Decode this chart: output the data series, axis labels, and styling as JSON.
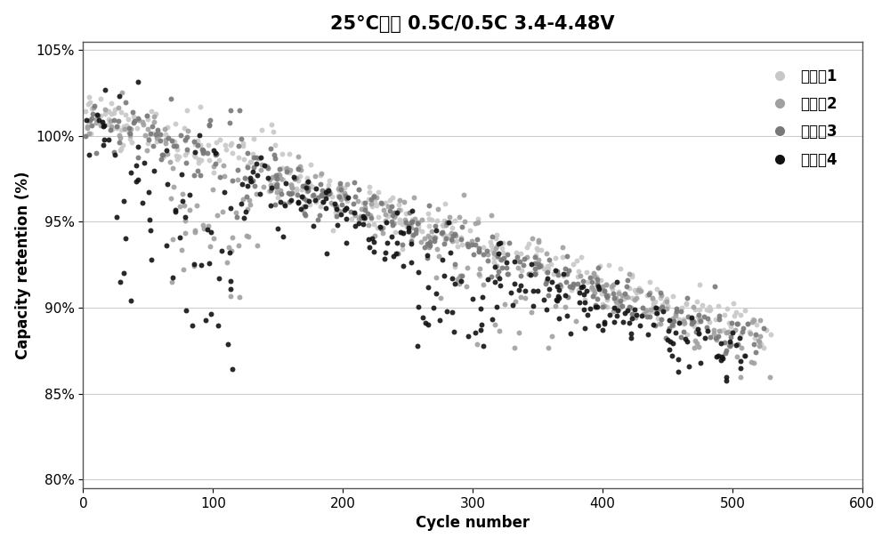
{
  "title": "25°C循环 0.5C/0.5C 3.4-4.48V",
  "xlabel": "Cycle number",
  "ylabel": "Capacity retention (%)",
  "xlim": [
    0,
    600
  ],
  "ylim": [
    0.795,
    1.055
  ],
  "yticks": [
    0.8,
    0.85,
    0.9,
    0.95,
    1.0,
    1.05
  ],
  "xticks": [
    0,
    100,
    200,
    300,
    400,
    500,
    600
  ],
  "legend_labels": [
    "电解剗1",
    "电解剗2",
    "电解剗3",
    "电解剗4"
  ],
  "colors": [
    "#c8c8c8",
    "#a0a0a0",
    "#787878",
    "#111111"
  ],
  "marker_size": 18,
  "alpha": 0.9,
  "background_color": "#ffffff",
  "title_fontsize": 15,
  "label_fontsize": 12,
  "tick_fontsize": 11,
  "legend_fontsize": 12
}
